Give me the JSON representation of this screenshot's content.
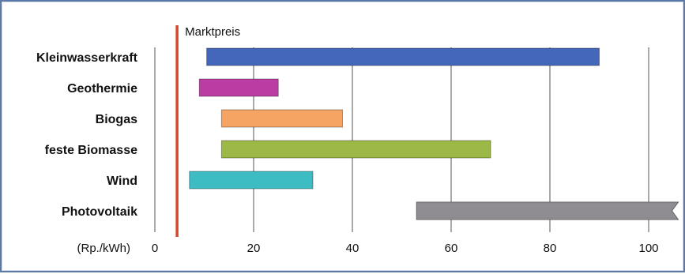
{
  "chart_data": {
    "type": "bar",
    "subtype": "range",
    "x_unit_label": "(Rp./kWh)",
    "xlim": [
      0,
      106
    ],
    "x_ticks": [
      0,
      20,
      40,
      60,
      80,
      100
    ],
    "grid": "vertical",
    "reference_line": {
      "label": "Marktpreis",
      "x": 4.5,
      "color": "#d9442e"
    },
    "categories": [
      "Kleinwasserkraft",
      "Geothermie",
      "Biogas",
      "feste Biomasse",
      "Wind",
      "Photovoltaik"
    ],
    "ranges": [
      {
        "category": "Kleinwasserkraft",
        "from": 10.5,
        "to": 90,
        "color": "#4466bb"
      },
      {
        "category": "Geothermie",
        "from": 9,
        "to": 25,
        "color": "#bb3da3"
      },
      {
        "category": "Biogas",
        "from": 13.5,
        "to": 38,
        "color": "#f6a463"
      },
      {
        "category": "feste Biomasse",
        "from": 13.5,
        "to": 68,
        "color": "#9cb846"
      },
      {
        "category": "Wind",
        "from": 7,
        "to": 32,
        "color": "#3ebcc4"
      },
      {
        "category": "Photovoltaik",
        "from": 53,
        "to": 106,
        "color": "#8f8d91",
        "open_end": true
      }
    ]
  }
}
